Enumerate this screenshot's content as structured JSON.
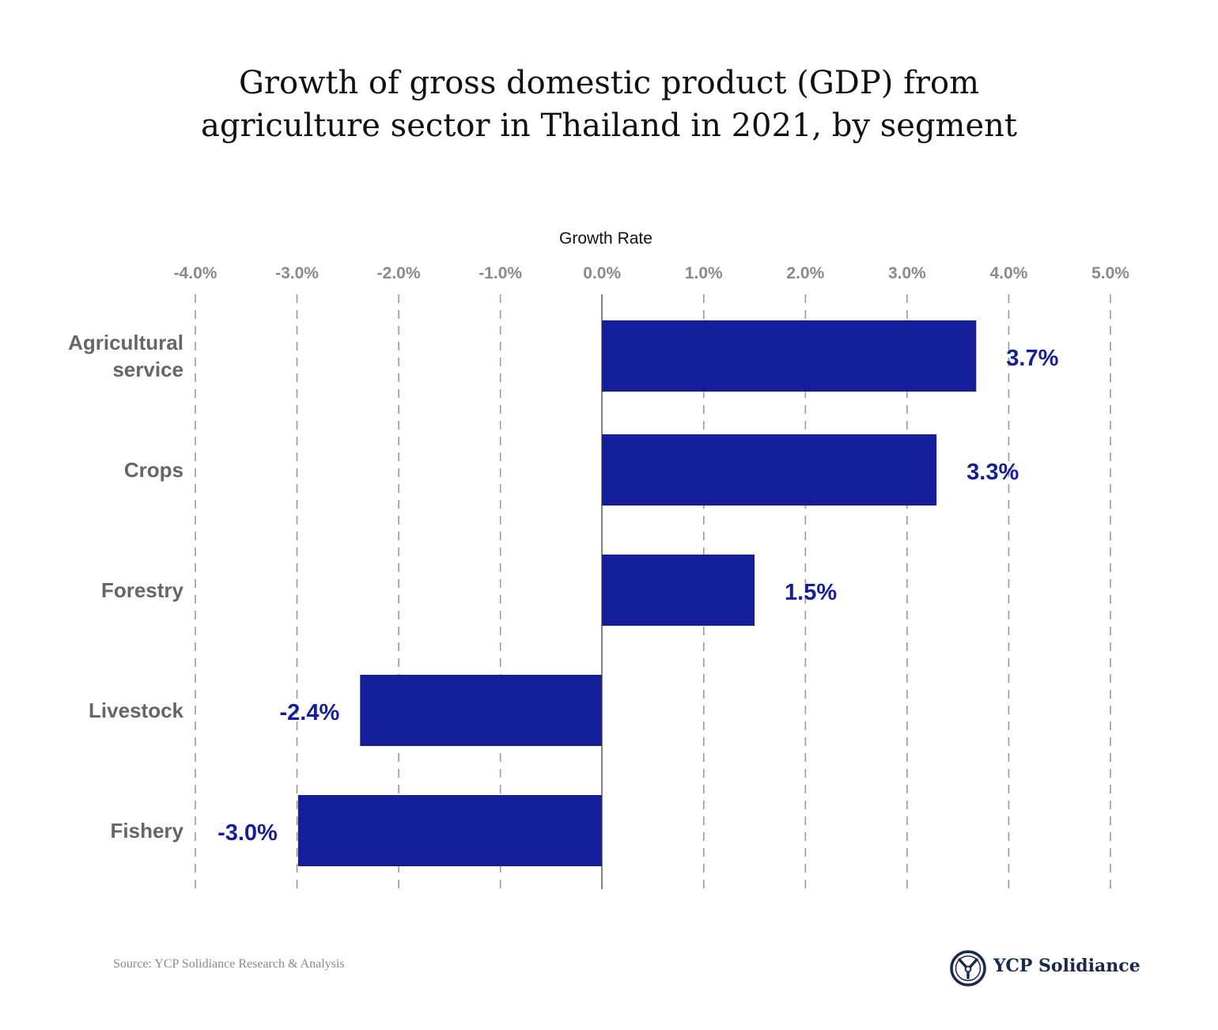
{
  "title_lines": [
    "Growth of gross domestic product (GDP) from",
    "agriculture sector in Thailand in 2021, by segment"
  ],
  "source": "Source: YCP Solidiance Research & Analysis",
  "brand": {
    "name": "YCP Solidiance",
    "logo_icon": "ycp-emblem-icon",
    "color": "#1b2a4a"
  },
  "chart_data": {
    "type": "bar",
    "orientation": "horizontal",
    "xlabel": "Growth Rate",
    "xlim": [
      -4.0,
      5.0
    ],
    "xticks": [
      -4.0,
      -3.0,
      -2.0,
      -1.0,
      0.0,
      1.0,
      2.0,
      3.0,
      4.0,
      5.0
    ],
    "xtick_labels": [
      "-4.0%",
      "-3.0%",
      "-2.0%",
      "-1.0%",
      "0.0%",
      "1.0%",
      "2.0%",
      "3.0%",
      "4.0%",
      "5.0%"
    ],
    "grid": "vertical dashed",
    "categories": [
      [
        "Agricultural",
        "service"
      ],
      [
        "Crops"
      ],
      [
        "Forestry"
      ],
      [
        "Livestock"
      ],
      [
        "Fishery"
      ]
    ],
    "values": [
      3.68,
      3.29,
      1.5,
      -2.38,
      -2.99
    ],
    "value_labels": [
      "3.7%",
      "3.3%",
      "1.5%",
      "-2.4%",
      "-3.0%"
    ],
    "bar_color": "#141e9b",
    "label_color": "#141e9b",
    "category_color": "#666666",
    "tick_color": "#8a8a8a"
  }
}
